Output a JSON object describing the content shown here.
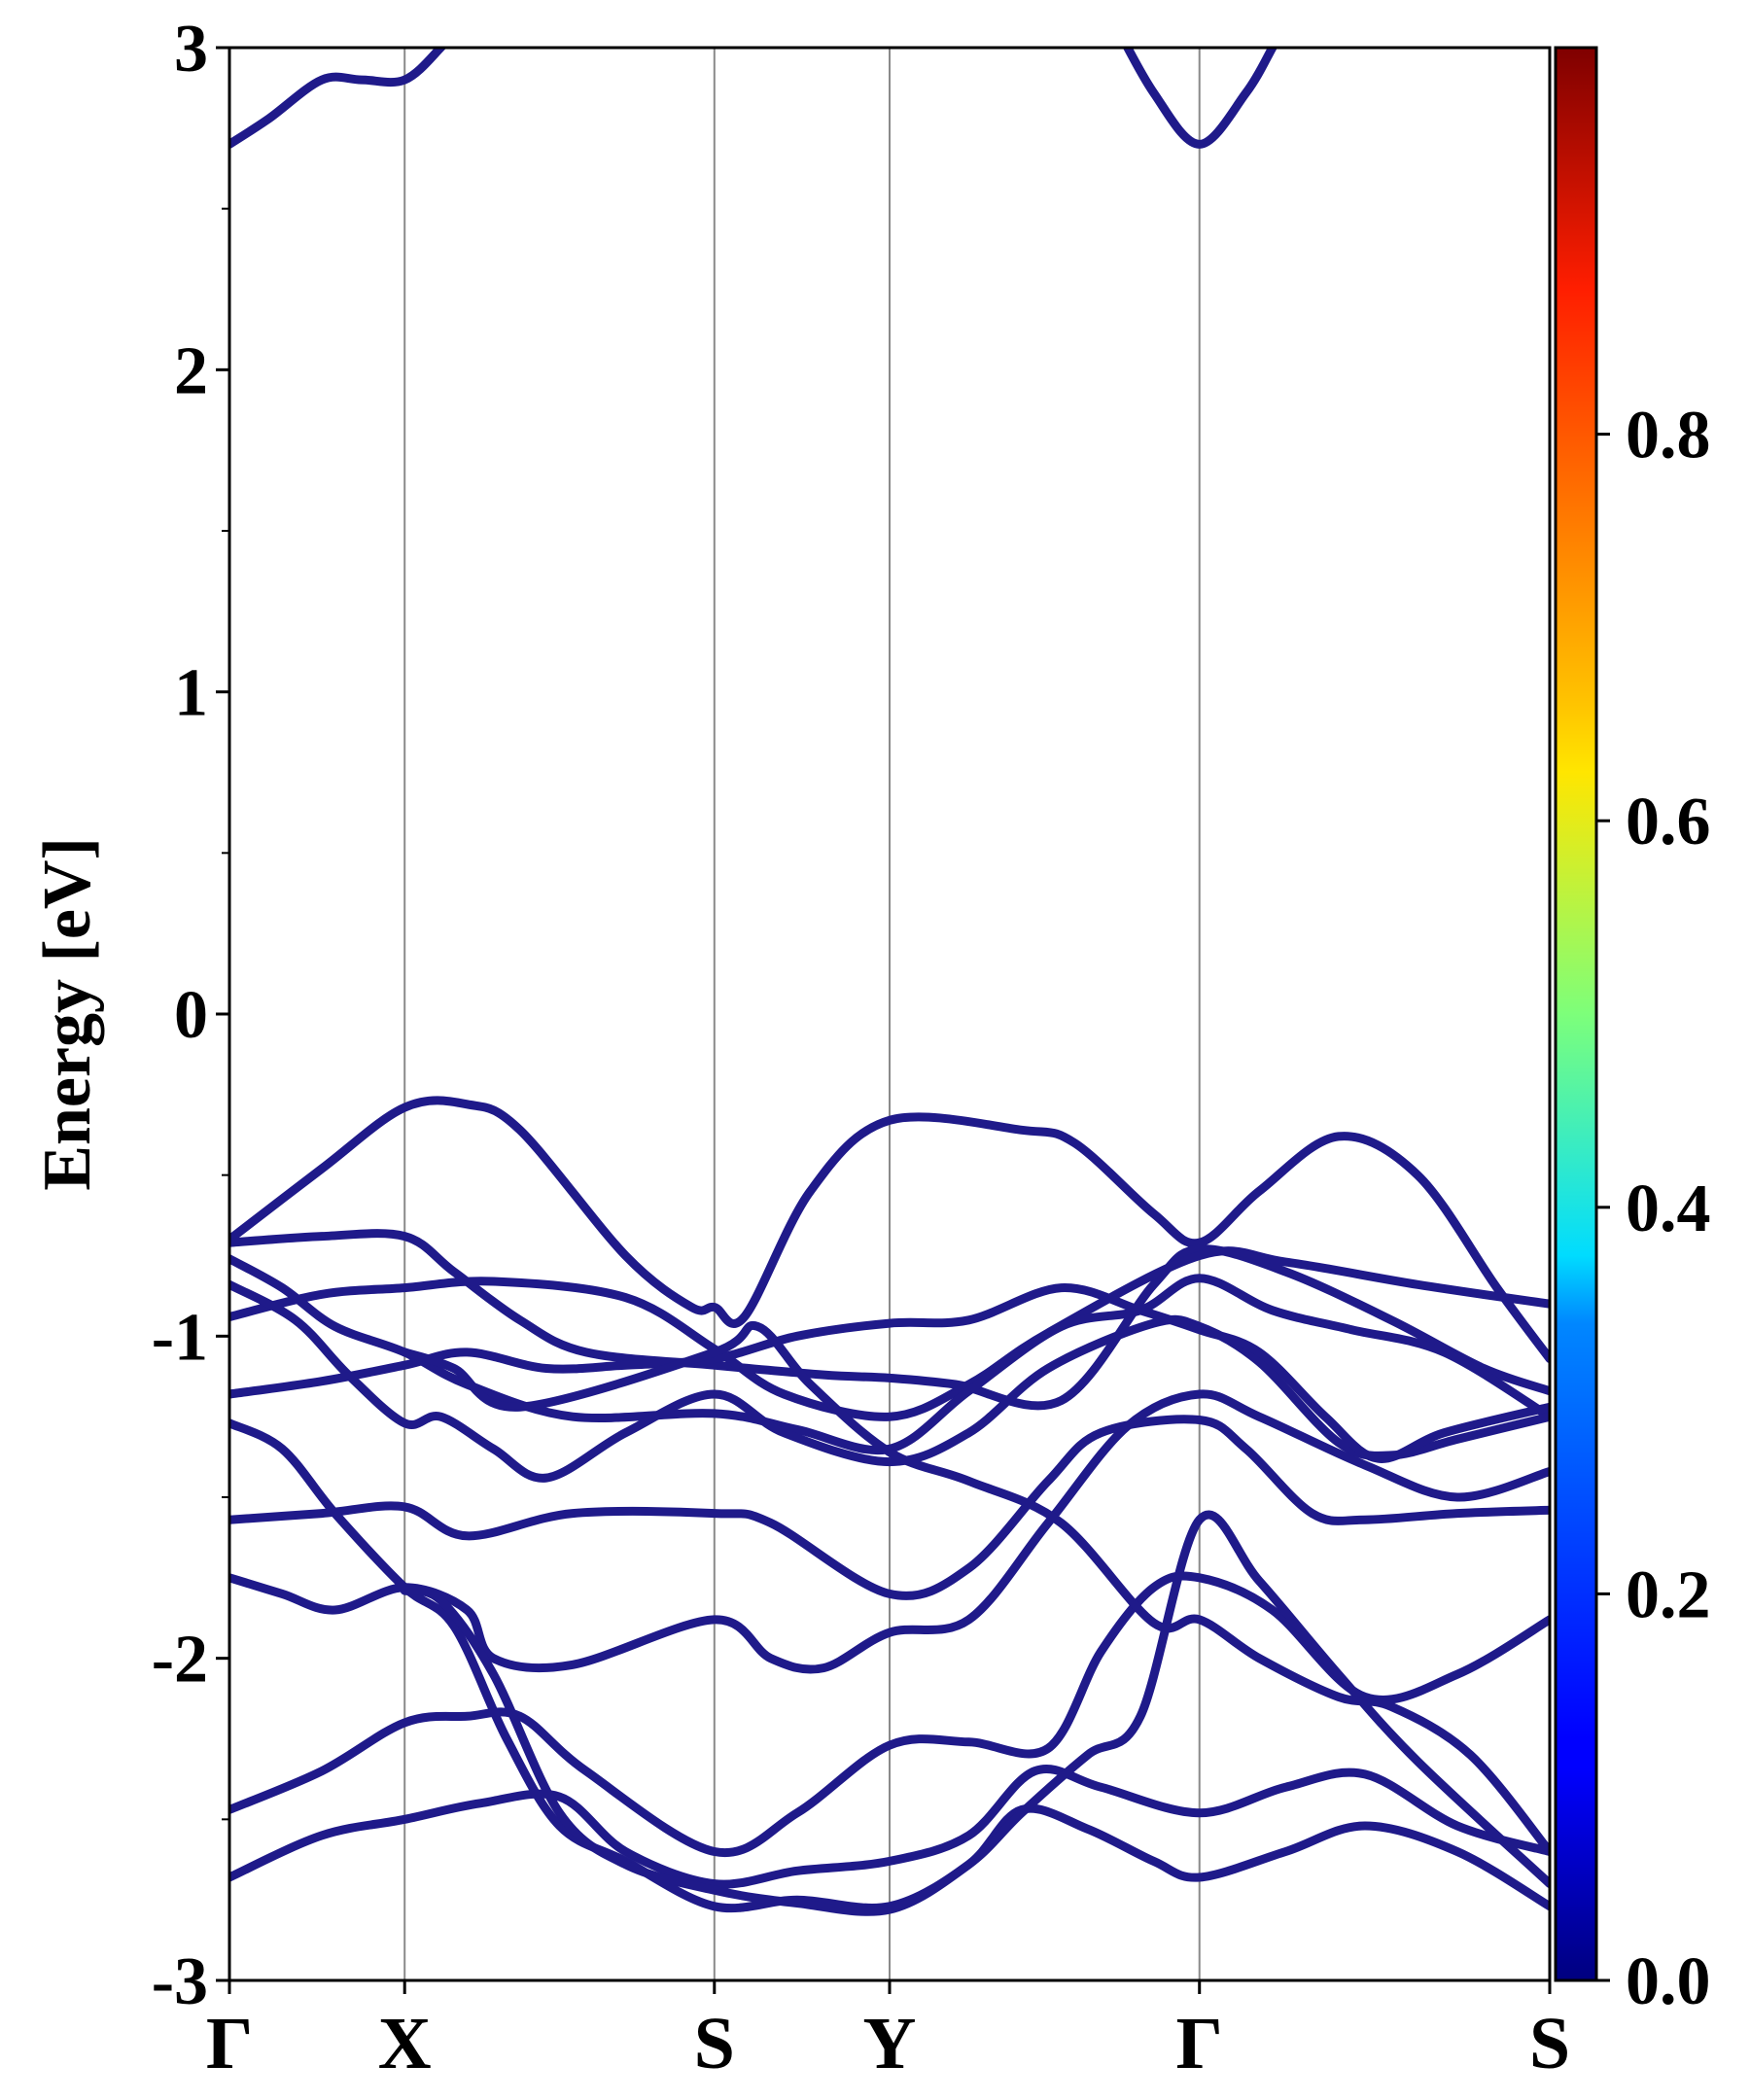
{
  "chart_data": {
    "type": "line",
    "title": "",
    "ylabel": "Energy [eV]",
    "xlabel": "",
    "ylim": [
      -3,
      3
    ],
    "yticks": [
      {
        "value": 3,
        "label": "3"
      },
      {
        "value": 2,
        "label": "2"
      },
      {
        "value": 1,
        "label": "1"
      },
      {
        "value": 0,
        "label": "0"
      },
      {
        "value": -1,
        "label": "-1"
      },
      {
        "value": -2,
        "label": "-2"
      },
      {
        "value": -3,
        "label": "-3"
      }
    ],
    "yminor_step": 0.5,
    "kpath": [
      {
        "label": "Γ",
        "pos": 0
      },
      {
        "label": "X",
        "pos": 0.1327
      },
      {
        "label": "S",
        "pos": 0.3673
      },
      {
        "label": "Y",
        "pos": 0.5
      },
      {
        "label": "Γ",
        "pos": 0.7347
      },
      {
        "label": "S",
        "pos": 1
      }
    ],
    "line_color": "#1f1a8a",
    "colorbar": {
      "range": [
        0,
        1
      ],
      "colormap": "jet",
      "ticks": [
        {
          "value": 0.0,
          "label": "0.0"
        },
        {
          "value": 0.2,
          "label": "0.2"
        },
        {
          "value": 0.4,
          "label": "0.4"
        },
        {
          "value": 0.6,
          "label": "0.6"
        },
        {
          "value": 0.8,
          "label": "0.8"
        }
      ]
    },
    "series": [
      {
        "values": [
          [
            0,
            2.7
          ],
          [
            0.03,
            2.78
          ],
          [
            0.07,
            2.9
          ],
          [
            0.1,
            2.9
          ],
          [
            0.1327,
            2.9
          ],
          [
            0.16,
            3.0
          ],
          [
            0.175,
            3.08
          ]
        ]
      },
      {
        "values": [
          [
            0.67,
            3.08
          ],
          [
            0.7,
            2.86
          ],
          [
            0.7347,
            2.7
          ],
          [
            0.77,
            2.86
          ],
          [
            0.79,
            3.0
          ],
          [
            0.8,
            3.08
          ]
        ]
      },
      {
        "values": [
          [
            0,
            -0.7
          ],
          [
            0.07,
            -0.48
          ],
          [
            0.1327,
            -0.29
          ],
          [
            0.18,
            -0.28
          ],
          [
            0.22,
            -0.36
          ],
          [
            0.3,
            -0.75
          ],
          [
            0.35,
            -0.91
          ],
          [
            0.3673,
            -0.91
          ],
          [
            0.39,
            -0.94
          ],
          [
            0.44,
            -0.55
          ],
          [
            0.5,
            -0.33
          ],
          [
            0.6,
            -0.36
          ],
          [
            0.64,
            -0.4
          ],
          [
            0.7,
            -0.62
          ],
          [
            0.7347,
            -0.71
          ],
          [
            0.78,
            -0.55
          ],
          [
            0.84,
            -0.38
          ],
          [
            0.9,
            -0.5
          ],
          [
            0.96,
            -0.85
          ],
          [
            1,
            -1.07
          ]
        ]
      },
      {
        "values": [
          [
            0,
            -0.71
          ],
          [
            0.07,
            -0.69
          ],
          [
            0.1327,
            -0.69
          ],
          [
            0.17,
            -0.8
          ],
          [
            0.22,
            -0.95
          ],
          [
            0.27,
            -1.05
          ],
          [
            0.3673,
            -1.09
          ],
          [
            0.45,
            -1.12
          ],
          [
            0.5,
            -1.13
          ],
          [
            0.55,
            -1.15
          ],
          [
            0.63,
            -1.2
          ],
          [
            0.7,
            -0.84
          ],
          [
            0.7347,
            -0.73
          ],
          [
            0.8,
            -0.8
          ],
          [
            0.88,
            -0.95
          ],
          [
            0.95,
            -1.1
          ],
          [
            1,
            -1.17
          ]
        ]
      },
      {
        "values": [
          [
            0,
            -0.94
          ],
          [
            0.07,
            -0.87
          ],
          [
            0.1327,
            -0.85
          ],
          [
            0.2,
            -0.83
          ],
          [
            0.3,
            -0.88
          ],
          [
            0.3673,
            -1.04
          ],
          [
            0.42,
            -1.18
          ],
          [
            0.5,
            -1.25
          ],
          [
            0.56,
            -1.15
          ],
          [
            0.62,
            -0.99
          ],
          [
            0.7347,
            -0.75
          ],
          [
            0.8,
            -0.77
          ],
          [
            0.9,
            -0.84
          ],
          [
            1,
            -0.9
          ]
        ]
      },
      {
        "values": [
          [
            0,
            -0.76
          ],
          [
            0.04,
            -0.85
          ],
          [
            0.08,
            -0.97
          ],
          [
            0.1327,
            -1.05
          ],
          [
            0.18,
            -1.15
          ],
          [
            0.26,
            -1.25
          ],
          [
            0.3673,
            -1.24
          ],
          [
            0.43,
            -1.29
          ],
          [
            0.5,
            -1.35
          ],
          [
            0.56,
            -1.17
          ],
          [
            0.63,
            -0.97
          ],
          [
            0.69,
            -0.92
          ],
          [
            0.7347,
            -0.82
          ],
          [
            0.79,
            -0.92
          ],
          [
            0.85,
            -0.98
          ],
          [
            0.92,
            -1.05
          ],
          [
            1,
            -1.25
          ]
        ]
      },
      {
        "values": [
          [
            0,
            -0.84
          ],
          [
            0.05,
            -0.95
          ],
          [
            0.09,
            -1.12
          ],
          [
            0.1327,
            -1.27
          ],
          [
            0.16,
            -1.25
          ],
          [
            0.2,
            -1.35
          ],
          [
            0.24,
            -1.44
          ],
          [
            0.3,
            -1.3
          ],
          [
            0.3673,
            -1.18
          ],
          [
            0.42,
            -1.3
          ],
          [
            0.5,
            -1.39
          ],
          [
            0.56,
            -1.3
          ],
          [
            0.62,
            -1.1
          ],
          [
            0.7,
            -0.96
          ],
          [
            0.7347,
            -0.97
          ],
          [
            0.78,
            -1.08
          ],
          [
            0.84,
            -1.33
          ],
          [
            0.88,
            -1.37
          ],
          [
            0.93,
            -1.32
          ],
          [
            1,
            -1.25
          ]
        ]
      },
      {
        "values": [
          [
            0,
            -1.18
          ],
          [
            0.07,
            -1.14
          ],
          [
            0.1327,
            -1.09
          ],
          [
            0.18,
            -1.05
          ],
          [
            0.24,
            -1.1
          ],
          [
            0.3,
            -1.09
          ],
          [
            0.3673,
            -1.07
          ],
          [
            0.43,
            -1.0
          ],
          [
            0.5,
            -0.96
          ],
          [
            0.56,
            -0.95
          ],
          [
            0.63,
            -0.85
          ],
          [
            0.69,
            -0.92
          ],
          [
            0.7347,
            -0.98
          ],
          [
            0.78,
            -1.05
          ],
          [
            0.83,
            -1.25
          ],
          [
            0.87,
            -1.38
          ],
          [
            0.92,
            -1.3
          ],
          [
            1,
            -1.22
          ]
        ]
      },
      {
        "values": [
          [
            0,
            -1.27
          ],
          [
            0.04,
            -1.35
          ],
          [
            0.08,
            -1.55
          ],
          [
            0.1327,
            -1.78
          ],
          [
            0.17,
            -1.9
          ],
          [
            0.21,
            -2.25
          ],
          [
            0.25,
            -2.52
          ],
          [
            0.3,
            -2.63
          ],
          [
            0.3673,
            -2.77
          ],
          [
            0.43,
            -2.75
          ],
          [
            0.5,
            -2.77
          ],
          [
            0.56,
            -2.64
          ],
          [
            0.6,
            -2.47
          ],
          [
            0.65,
            -2.53
          ],
          [
            0.7,
            -2.63
          ],
          [
            0.7347,
            -2.68
          ],
          [
            0.8,
            -2.6
          ],
          [
            0.86,
            -2.52
          ],
          [
            0.93,
            -2.6
          ],
          [
            1,
            -2.77
          ]
        ]
      },
      {
        "values": [
          [
            0,
            -1.57
          ],
          [
            0.07,
            -1.55
          ],
          [
            0.1327,
            -1.53
          ],
          [
            0.18,
            -1.62
          ],
          [
            0.26,
            -1.55
          ],
          [
            0.3673,
            -1.55
          ],
          [
            0.41,
            -1.58
          ],
          [
            0.5,
            -1.8
          ],
          [
            0.56,
            -1.72
          ],
          [
            0.62,
            -1.45
          ],
          [
            0.66,
            -1.3
          ],
          [
            0.7347,
            -1.26
          ],
          [
            0.77,
            -1.35
          ],
          [
            0.82,
            -1.55
          ],
          [
            0.86,
            -1.57
          ],
          [
            0.93,
            -1.55
          ],
          [
            1,
            -1.54
          ]
        ]
      },
      {
        "values": [
          [
            0,
            -1.75
          ],
          [
            0.04,
            -1.8
          ],
          [
            0.08,
            -1.85
          ],
          [
            0.1327,
            -1.78
          ],
          [
            0.18,
            -1.85
          ],
          [
            0.2,
            -2.0
          ],
          [
            0.26,
            -2.02
          ],
          [
            0.3673,
            -1.88
          ],
          [
            0.41,
            -2.0
          ],
          [
            0.45,
            -2.03
          ],
          [
            0.5,
            -1.92
          ],
          [
            0.56,
            -1.88
          ],
          [
            0.62,
            -1.58
          ],
          [
            0.68,
            -1.28
          ],
          [
            0.7347,
            -1.18
          ],
          [
            0.78,
            -1.25
          ],
          [
            0.86,
            -1.4
          ],
          [
            0.93,
            -1.5
          ],
          [
            1,
            -1.42
          ]
        ]
      },
      {
        "values": [
          [
            0,
            -2.47
          ],
          [
            0.07,
            -2.35
          ],
          [
            0.1327,
            -2.2
          ],
          [
            0.18,
            -2.18
          ],
          [
            0.22,
            -2.18
          ],
          [
            0.27,
            -2.35
          ],
          [
            0.3673,
            -2.6
          ],
          [
            0.43,
            -2.48
          ],
          [
            0.5,
            -2.27
          ],
          [
            0.56,
            -2.26
          ],
          [
            0.62,
            -2.28
          ],
          [
            0.66,
            -1.98
          ],
          [
            0.7,
            -1.78
          ],
          [
            0.7347,
            -1.75
          ],
          [
            0.79,
            -1.85
          ],
          [
            0.86,
            -2.12
          ],
          [
            0.93,
            -2.05
          ],
          [
            1,
            -1.88
          ]
        ]
      },
      {
        "values": [
          [
            0,
            -2.68
          ],
          [
            0.07,
            -2.55
          ],
          [
            0.1327,
            -2.5
          ],
          [
            0.19,
            -2.45
          ],
          [
            0.25,
            -2.43
          ],
          [
            0.3,
            -2.6
          ],
          [
            0.3673,
            -2.7
          ],
          [
            0.43,
            -2.66
          ],
          [
            0.5,
            -2.63
          ],
          [
            0.56,
            -2.55
          ],
          [
            0.61,
            -2.35
          ],
          [
            0.66,
            -2.4
          ],
          [
            0.7347,
            -2.48
          ],
          [
            0.8,
            -2.4
          ],
          [
            0.86,
            -2.36
          ],
          [
            0.93,
            -2.52
          ],
          [
            1,
            -2.6
          ]
        ]
      },
      {
        "values": [
          [
            0.1327,
            -1.79
          ],
          [
            0.16,
            -1.82
          ],
          [
            0.2,
            -2.05
          ],
          [
            0.25,
            -2.48
          ],
          [
            0.3,
            -2.64
          ],
          [
            0.3673,
            -2.72
          ],
          [
            0.43,
            -2.76
          ],
          [
            0.5,
            -2.78
          ],
          [
            0.56,
            -2.64
          ],
          [
            0.6,
            -2.48
          ],
          [
            0.65,
            -2.3
          ],
          [
            0.69,
            -2.18
          ],
          [
            0.7347,
            -1.57
          ],
          [
            0.78,
            -1.76
          ],
          [
            0.84,
            -2.05
          ],
          [
            0.9,
            -2.32
          ],
          [
            1,
            -2.7
          ]
        ]
      },
      {
        "values": [
          [
            0.1327,
            -1.05
          ],
          [
            0.17,
            -1.1
          ],
          [
            0.22,
            -1.22
          ],
          [
            0.3673,
            -1.05
          ],
          [
            0.4,
            -0.97
          ],
          [
            0.44,
            -1.15
          ],
          [
            0.5,
            -1.36
          ],
          [
            0.56,
            -1.45
          ],
          [
            0.63,
            -1.58
          ],
          [
            0.7,
            -1.89
          ],
          [
            0.7347,
            -1.88
          ],
          [
            0.78,
            -2.0
          ],
          [
            0.84,
            -2.12
          ],
          [
            0.88,
            -2.15
          ],
          [
            0.94,
            -2.3
          ],
          [
            1,
            -2.6
          ]
        ]
      }
    ]
  }
}
